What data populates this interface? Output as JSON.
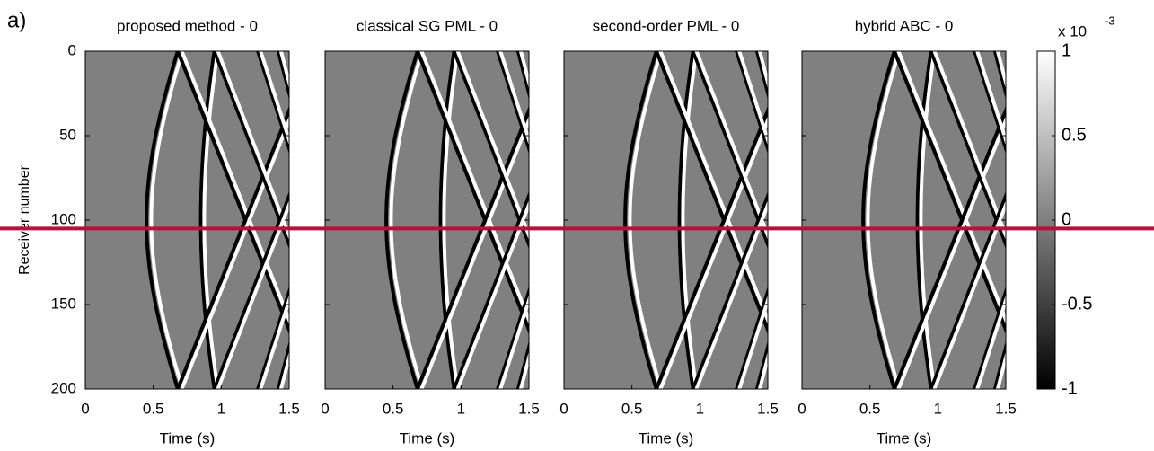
{
  "figure_label": "a)",
  "colorbar": {
    "label": "x 10",
    "exponent": "-3",
    "colormap": "gray",
    "clim": [
      -1,
      1
    ],
    "ticks": [
      -1,
      -0.5,
      0,
      0.5,
      1
    ]
  },
  "reference_line": {
    "value": 105,
    "color": "#b5123a"
  },
  "chart_data": [
    {
      "type": "image",
      "title": "proposed method - 0",
      "xlabel": "Time (s)",
      "ylabel": "Receiver number",
      "xlim": [
        0,
        1.5
      ],
      "xticks": [
        0,
        0.5,
        1,
        1.5
      ],
      "ylim": [
        0,
        200
      ],
      "y_reversed": true,
      "yticks": [
        0,
        50,
        100,
        150,
        200
      ]
    },
    {
      "type": "image",
      "title": "classical SG PML - 0",
      "xlabel": "Time (s)",
      "xlim": [
        0,
        1.5
      ],
      "xticks": [
        0,
        0.5,
        1,
        1.5
      ],
      "ylim": [
        0,
        200
      ],
      "y_reversed": true,
      "yticks": [
        0,
        50,
        100,
        150,
        200
      ]
    },
    {
      "type": "image",
      "title": "second-order PML - 0",
      "xlabel": "Time (s)",
      "xlim": [
        0,
        1.5
      ],
      "xticks": [
        0,
        0.5,
        1,
        1.5
      ],
      "ylim": [
        0,
        200
      ],
      "y_reversed": true,
      "yticks": [
        0,
        50,
        100,
        150,
        200
      ]
    },
    {
      "type": "image",
      "title": "hybrid ABC - 0",
      "xlabel": "Time (s)",
      "xlim": [
        0,
        1.5
      ],
      "xticks": [
        0,
        0.5,
        1,
        1.5
      ],
      "ylim": [
        0,
        200
      ],
      "y_reversed": true,
      "yticks": [
        0,
        50,
        100,
        150,
        200
      ]
    }
  ]
}
